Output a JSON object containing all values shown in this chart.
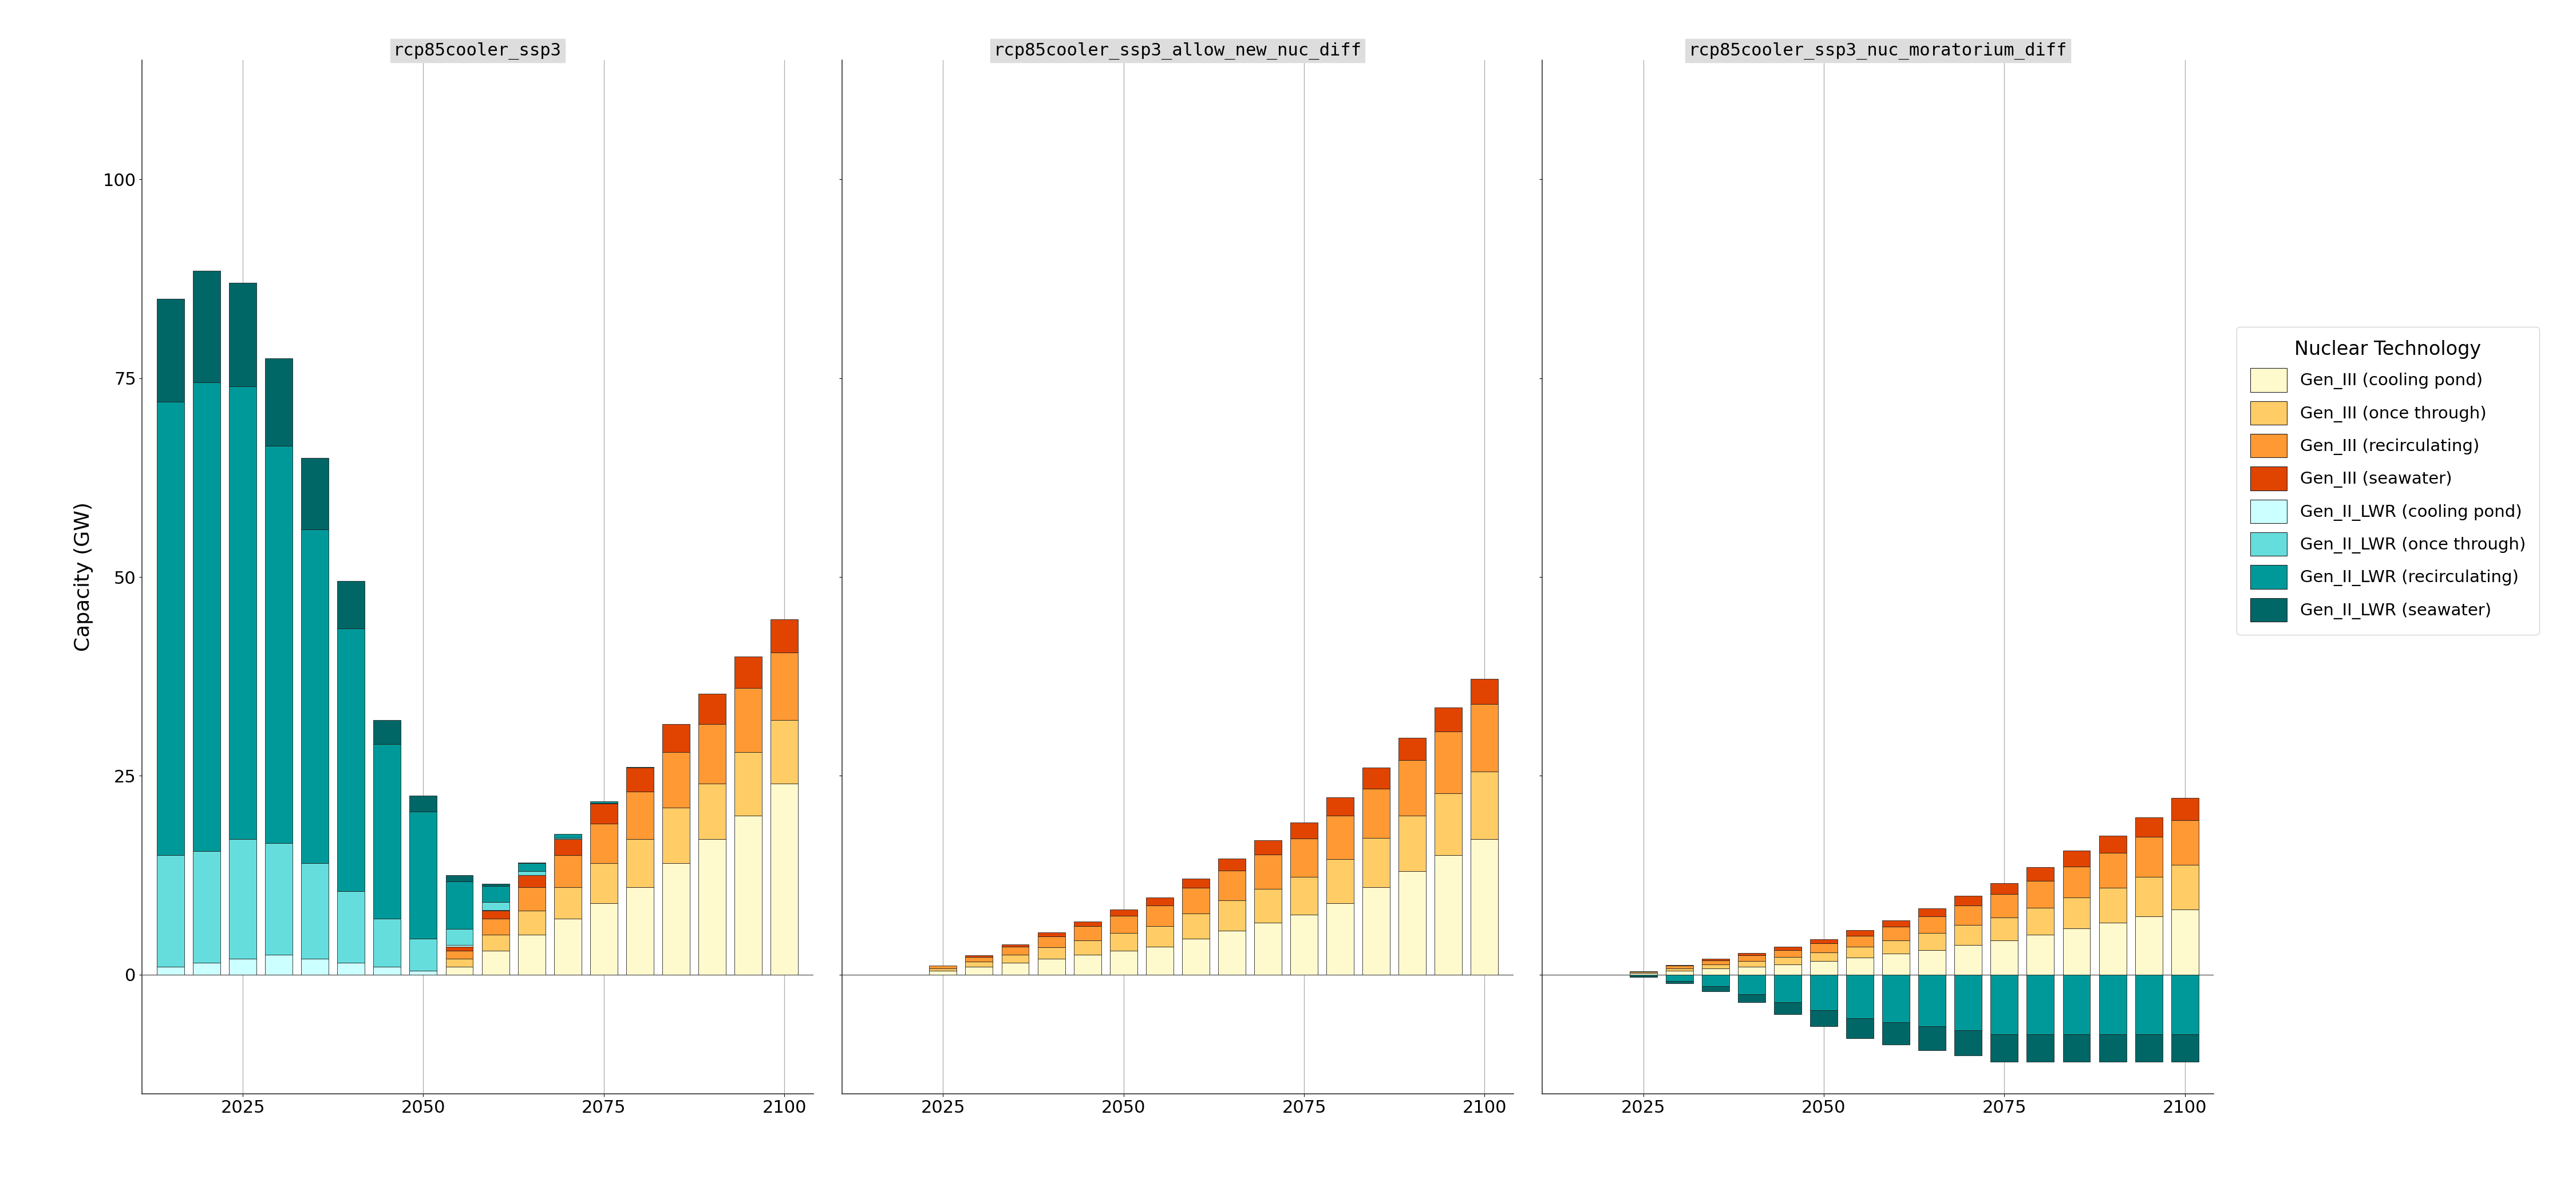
{
  "panels": [
    {
      "title": "rcp85cooler_ssp3",
      "show_ylabel": true
    },
    {
      "title": "rcp85cooler_ssp3_allow_new_nuc_diff",
      "show_ylabel": false
    },
    {
      "title": "rcp85cooler_ssp3_nuc_moratorium_diff",
      "show_ylabel": false
    }
  ],
  "years": [
    2015,
    2020,
    2025,
    2030,
    2035,
    2040,
    2045,
    2050,
    2055,
    2060,
    2065,
    2070,
    2075,
    2080,
    2085,
    2090,
    2095,
    2100
  ],
  "technologies": [
    "Gen_III (cooling pond)",
    "Gen_III (once through)",
    "Gen_III (recirculating)",
    "Gen_III (seawater)",
    "Gen_II_LWR (cooling pond)",
    "Gen_II_LWR (once through)",
    "Gen_II_LWR (recirculating)",
    "Gen_II_LWR (seawater)"
  ],
  "colors": [
    "#FFFACD",
    "#FFCC66",
    "#FF9933",
    "#E04400",
    "#CCFFFF",
    "#66DDDD",
    "#009999",
    "#006666"
  ],
  "panel1_data": {
    "Gen_III (cooling pond)": [
      0,
      0,
      0,
      0,
      0,
      0,
      0,
      0,
      1,
      3,
      5,
      7,
      9,
      11,
      14,
      17,
      20,
      24
    ],
    "Gen_III (once through)": [
      0,
      0,
      0,
      0,
      0,
      0,
      0,
      0,
      1,
      2,
      3,
      4,
      5,
      6,
      7,
      7,
      8,
      8
    ],
    "Gen_III (recirculating)": [
      0,
      0,
      0,
      0,
      0,
      0,
      0,
      0,
      1,
      2,
      3,
      4,
      5,
      6,
      7,
      7.5,
      8,
      8.5
    ],
    "Gen_III (seawater)": [
      0,
      0,
      0,
      0,
      0,
      0,
      0,
      0,
      0.5,
      1,
      1.5,
      2,
      2.5,
      3,
      3.5,
      3.8,
      4,
      4.2
    ],
    "Gen_II_LWR (cooling pond)": [
      1,
      1.5,
      2,
      2.5,
      2,
      1.5,
      1,
      0.5,
      0.2,
      0.1,
      0,
      0,
      0,
      0,
      0,
      0,
      0,
      0
    ],
    "Gen_II_LWR (once through)": [
      14,
      14,
      15,
      14,
      12,
      9,
      6,
      4,
      2,
      1,
      0.5,
      0.2,
      0.1,
      0,
      0,
      0,
      0,
      0
    ],
    "Gen_II_LWR (recirculating)": [
      57,
      59,
      57,
      50,
      42,
      33,
      22,
      16,
      6,
      2,
      1,
      0.5,
      0.2,
      0.1,
      0,
      0,
      0,
      0
    ],
    "Gen_II_LWR (seawater)": [
      13,
      14,
      13,
      11,
      9,
      6,
      3,
      2,
      0.8,
      0.3,
      0.1,
      0,
      0,
      0,
      0,
      0,
      0,
      0
    ]
  },
  "panel2_data": {
    "Gen_III (cooling pond)": [
      0,
      0,
      0.5,
      1.0,
      1.5,
      2.0,
      2.5,
      3.0,
      3.5,
      4.5,
      5.5,
      6.5,
      7.5,
      9,
      11,
      13,
      15,
      17
    ],
    "Gen_III (once through)": [
      0,
      0,
      0.3,
      0.6,
      1.0,
      1.4,
      1.8,
      2.2,
      2.6,
      3.2,
      3.8,
      4.3,
      4.8,
      5.5,
      6.2,
      7,
      7.8,
      8.5
    ],
    "Gen_III (recirculating)": [
      0,
      0,
      0.3,
      0.6,
      1.0,
      1.4,
      1.8,
      2.2,
      2.6,
      3.2,
      3.8,
      4.3,
      4.8,
      5.5,
      6.2,
      7,
      7.8,
      8.5
    ],
    "Gen_III (seawater)": [
      0,
      0,
      0,
      0.2,
      0.3,
      0.5,
      0.6,
      0.8,
      1.0,
      1.2,
      1.5,
      1.8,
      2.0,
      2.3,
      2.6,
      2.8,
      3.0,
      3.2
    ],
    "Gen_II_LWR (cooling pond)": [
      0,
      0,
      0,
      0,
      0,
      0,
      0,
      0,
      0,
      0,
      0,
      0,
      0,
      0,
      0,
      0,
      0,
      0
    ],
    "Gen_II_LWR (once through)": [
      0,
      0,
      0,
      0,
      0,
      0,
      0,
      0,
      0,
      0,
      0,
      0,
      0,
      0,
      0,
      0,
      0,
      0
    ],
    "Gen_II_LWR (recirculating)": [
      0,
      0,
      0,
      0,
      0,
      0,
      0,
      0,
      0,
      0,
      0,
      0,
      0,
      0,
      0,
      0,
      0,
      0
    ],
    "Gen_II_LWR (seawater)": [
      0,
      0,
      0,
      0,
      0,
      0,
      0,
      0,
      0,
      0,
      0,
      0,
      0,
      0,
      0,
      0,
      0,
      0
    ]
  },
  "panel3_data": {
    "Gen_III (cooling pond)": [
      0,
      0,
      0.2,
      0.5,
      0.8,
      1.0,
      1.3,
      1.7,
      2.1,
      2.6,
      3.1,
      3.7,
      4.3,
      5.0,
      5.8,
      6.5,
      7.3,
      8.2
    ],
    "Gen_III (once through)": [
      0,
      0,
      0.1,
      0.3,
      0.5,
      0.7,
      0.9,
      1.1,
      1.4,
      1.7,
      2.1,
      2.5,
      2.9,
      3.4,
      3.9,
      4.4,
      5.0,
      5.6
    ],
    "Gen_III (recirculating)": [
      0,
      0,
      0.1,
      0.3,
      0.5,
      0.7,
      0.9,
      1.1,
      1.4,
      1.7,
      2.1,
      2.5,
      2.9,
      3.4,
      3.9,
      4.4,
      5.0,
      5.6
    ],
    "Gen_III (seawater)": [
      0,
      0,
      0,
      0.1,
      0.2,
      0.3,
      0.4,
      0.5,
      0.7,
      0.8,
      1.0,
      1.2,
      1.4,
      1.7,
      2.0,
      2.2,
      2.5,
      2.8
    ],
    "Gen_II_LWR (cooling pond)": [
      0,
      0,
      0,
      0,
      0,
      0,
      0,
      0,
      0,
      0,
      0,
      0,
      0,
      0,
      0,
      0,
      0,
      0
    ],
    "Gen_II_LWR (once through)": [
      0,
      0,
      0,
      0,
      0,
      0,
      0,
      0,
      0,
      0,
      0,
      0,
      0,
      0,
      0,
      0,
      0,
      0
    ],
    "Gen_II_LWR (recirculating)": [
      0,
      0,
      -0.2,
      -0.8,
      -1.5,
      -2.5,
      -3.5,
      -4.5,
      -5.5,
      -6.0,
      -6.5,
      -7.0,
      -7.5,
      -7.5,
      -7.5,
      -7.5,
      -7.5,
      -7.5
    ],
    "Gen_II_LWR (seawater)": [
      0,
      0,
      -0.1,
      -0.3,
      -0.6,
      -1.0,
      -1.5,
      -2.0,
      -2.5,
      -2.8,
      -3.0,
      -3.2,
      -3.5,
      -3.5,
      -3.5,
      -3.5,
      -3.5,
      -3.5
    ]
  },
  "ylabel": "Capacity (GW)",
  "legend_title": "Nuclear Technology",
  "ylim": [
    -15,
    115
  ],
  "yticks": [
    0,
    25,
    50,
    75,
    100
  ],
  "xtick_years": [
    2025,
    2050,
    2075,
    2100
  ],
  "xlim": [
    2011,
    2104
  ],
  "bar_width": 3.8,
  "title_bg": "#DDDDDD",
  "grid_color": "#AAAAAA",
  "edge_color": "#222222"
}
